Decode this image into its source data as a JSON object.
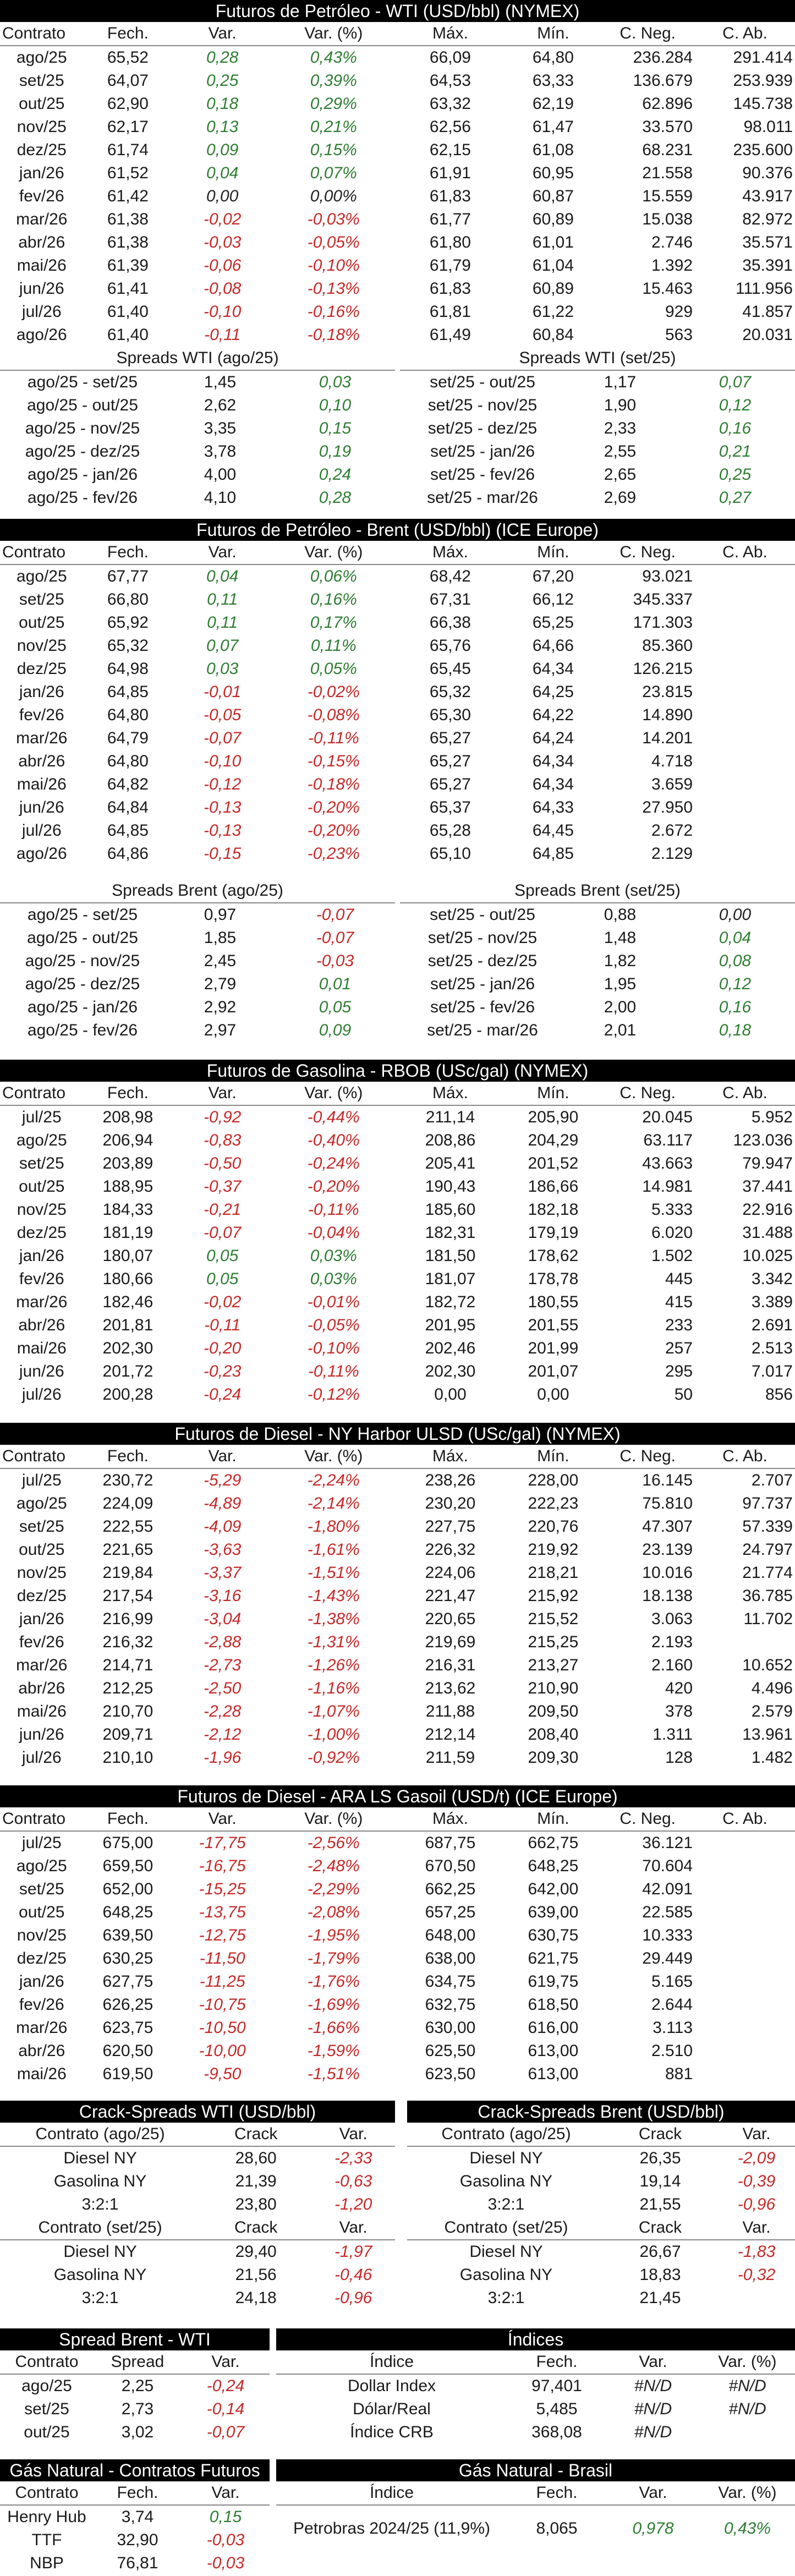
{
  "wti": {
    "title": "Futuros de Petróleo - WTI (USD/bbl) (NYMEX)",
    "columns": [
      "Contrato",
      "Fech.",
      "Var.",
      "Var. (%)",
      "Máx.",
      "Mín.",
      "C. Neg.",
      "C. Ab."
    ],
    "rows": [
      [
        "ago/25",
        "65,52",
        "0,28",
        "0,43%",
        "66,09",
        "64,80",
        "236.284",
        "291.414"
      ],
      [
        "set/25",
        "64,07",
        "0,25",
        "0,39%",
        "64,53",
        "63,33",
        "136.679",
        "253.939"
      ],
      [
        "out/25",
        "62,90",
        "0,18",
        "0,29%",
        "63,32",
        "62,19",
        "62.896",
        "145.738"
      ],
      [
        "nov/25",
        "62,17",
        "0,13",
        "0,21%",
        "62,56",
        "61,47",
        "33.570",
        "98.011"
      ],
      [
        "dez/25",
        "61,74",
        "0,09",
        "0,15%",
        "62,15",
        "61,08",
        "68.231",
        "235.600"
      ],
      [
        "jan/26",
        "61,52",
        "0,04",
        "0,07%",
        "61,91",
        "60,95",
        "21.558",
        "90.376"
      ],
      [
        "fev/26",
        "61,42",
        "0,00",
        "0,00%",
        "61,83",
        "60,87",
        "15.559",
        "43.917"
      ],
      [
        "mar/26",
        "61,38",
        "-0,02",
        "-0,03%",
        "61,77",
        "60,89",
        "15.038",
        "82.972"
      ],
      [
        "abr/26",
        "61,38",
        "-0,03",
        "-0,05%",
        "61,80",
        "61,01",
        "2.746",
        "35.571"
      ],
      [
        "mai/26",
        "61,39",
        "-0,06",
        "-0,10%",
        "61,79",
        "61,04",
        "1.392",
        "35.391"
      ],
      [
        "jun/26",
        "61,41",
        "-0,08",
        "-0,13%",
        "61,83",
        "60,89",
        "15.463",
        "111.956"
      ],
      [
        "jul/26",
        "61,40",
        "-0,10",
        "-0,16%",
        "61,81",
        "61,22",
        "929",
        "41.857"
      ],
      [
        "ago/26",
        "61,40",
        "-0,11",
        "-0,18%",
        "61,49",
        "60,84",
        "563",
        "20.031"
      ]
    ],
    "spreads_left_title": "Spreads WTI (ago/25)",
    "spreads_left": [
      [
        "ago/25 - set/25",
        "1,45",
        "0,03"
      ],
      [
        "ago/25 - out/25",
        "2,62",
        "0,10"
      ],
      [
        "ago/25 - nov/25",
        "3,35",
        "0,15"
      ],
      [
        "ago/25 - dez/25",
        "3,78",
        "0,19"
      ],
      [
        "ago/25 - jan/26",
        "4,00",
        "0,24"
      ],
      [
        "ago/25 - fev/26",
        "4,10",
        "0,28"
      ]
    ],
    "spreads_right_title": "Spreads WTI (set/25)",
    "spreads_right": [
      [
        "set/25 - out/25",
        "1,17",
        "0,07"
      ],
      [
        "set/25 - nov/25",
        "1,90",
        "0,12"
      ],
      [
        "set/25 - dez/25",
        "2,33",
        "0,16"
      ],
      [
        "set/25 - jan/26",
        "2,55",
        "0,21"
      ],
      [
        "set/25 - fev/26",
        "2,65",
        "0,25"
      ],
      [
        "set/25 - mar/26",
        "2,69",
        "0,27"
      ]
    ]
  },
  "brent": {
    "title": "Futuros de Petróleo - Brent (USD/bbl) (ICE Europe)",
    "columns": [
      "Contrato",
      "Fech.",
      "Var.",
      "Var. (%)",
      "Máx.",
      "Mín.",
      "C. Neg.",
      "C. Ab."
    ],
    "rows": [
      [
        "ago/25",
        "67,77",
        "0,04",
        "0,06%",
        "68,42",
        "67,20",
        "93.021",
        ""
      ],
      [
        "set/25",
        "66,80",
        "0,11",
        "0,16%",
        "67,31",
        "66,12",
        "345.337",
        ""
      ],
      [
        "out/25",
        "65,92",
        "0,11",
        "0,17%",
        "66,38",
        "65,25",
        "171.303",
        ""
      ],
      [
        "nov/25",
        "65,32",
        "0,07",
        "0,11%",
        "65,76",
        "64,66",
        "85.360",
        ""
      ],
      [
        "dez/25",
        "64,98",
        "0,03",
        "0,05%",
        "65,45",
        "64,34",
        "126.215",
        ""
      ],
      [
        "jan/26",
        "64,85",
        "-0,01",
        "-0,02%",
        "65,32",
        "64,25",
        "23.815",
        ""
      ],
      [
        "fev/26",
        "64,80",
        "-0,05",
        "-0,08%",
        "65,30",
        "64,22",
        "14.890",
        ""
      ],
      [
        "mar/26",
        "64,79",
        "-0,07",
        "-0,11%",
        "65,27",
        "64,24",
        "14.201",
        ""
      ],
      [
        "abr/26",
        "64,80",
        "-0,10",
        "-0,15%",
        "65,27",
        "64,34",
        "4.718",
        ""
      ],
      [
        "mai/26",
        "64,82",
        "-0,12",
        "-0,18%",
        "65,27",
        "64,34",
        "3.659",
        ""
      ],
      [
        "jun/26",
        "64,84",
        "-0,13",
        "-0,20%",
        "65,37",
        "64,33",
        "27.950",
        ""
      ],
      [
        "jul/26",
        "64,85",
        "-0,13",
        "-0,20%",
        "65,28",
        "64,45",
        "2.672",
        ""
      ],
      [
        "ago/26",
        "64,86",
        "-0,15",
        "-0,23%",
        "65,10",
        "64,85",
        "2.129",
        ""
      ]
    ],
    "spreads_left_title": "Spreads Brent (ago/25)",
    "spreads_left": [
      [
        "ago/25 - set/25",
        "0,97",
        "-0,07"
      ],
      [
        "ago/25 - out/25",
        "1,85",
        "-0,07"
      ],
      [
        "ago/25 - nov/25",
        "2,45",
        "-0,03"
      ],
      [
        "ago/25 - dez/25",
        "2,79",
        "0,01"
      ],
      [
        "ago/25 - jan/26",
        "2,92",
        "0,05"
      ],
      [
        "ago/25 - fev/26",
        "2,97",
        "0,09"
      ]
    ],
    "spreads_right_title": "Spreads Brent (set/25)",
    "spreads_right": [
      [
        "set/25 - out/25",
        "0,88",
        "0,00"
      ],
      [
        "set/25 - nov/25",
        "1,48",
        "0,04"
      ],
      [
        "set/25 - dez/25",
        "1,82",
        "0,08"
      ],
      [
        "set/25 - jan/26",
        "1,95",
        "0,12"
      ],
      [
        "set/25 - fev/26",
        "2,00",
        "0,16"
      ],
      [
        "set/25 - mar/26",
        "2,01",
        "0,18"
      ]
    ]
  },
  "rbob": {
    "title": "Futuros de Gasolina - RBOB (USc/gal) (NYMEX)",
    "columns": [
      "Contrato",
      "Fech.",
      "Var.",
      "Var. (%)",
      "Máx.",
      "Mín.",
      "C. Neg.",
      "C. Ab."
    ],
    "rows": [
      [
        "jul/25",
        "208,98",
        "-0,92",
        "-0,44%",
        "211,14",
        "205,90",
        "20.045",
        "5.952"
      ],
      [
        "ago/25",
        "206,94",
        "-0,83",
        "-0,40%",
        "208,86",
        "204,29",
        "63.117",
        "123.036"
      ],
      [
        "set/25",
        "203,89",
        "-0,50",
        "-0,24%",
        "205,41",
        "201,52",
        "43.663",
        "79.947"
      ],
      [
        "out/25",
        "188,95",
        "-0,37",
        "-0,20%",
        "190,43",
        "186,66",
        "14.981",
        "37.441"
      ],
      [
        "nov/25",
        "184,33",
        "-0,21",
        "-0,11%",
        "185,60",
        "182,18",
        "5.333",
        "22.916"
      ],
      [
        "dez/25",
        "181,19",
        "-0,07",
        "-0,04%",
        "182,31",
        "179,19",
        "6.020",
        "31.488"
      ],
      [
        "jan/26",
        "180,07",
        "0,05",
        "0,03%",
        "181,50",
        "178,62",
        "1.502",
        "10.025"
      ],
      [
        "fev/26",
        "180,66",
        "0,05",
        "0,03%",
        "181,07",
        "178,78",
        "445",
        "3.342"
      ],
      [
        "mar/26",
        "182,46",
        "-0,02",
        "-0,01%",
        "182,72",
        "180,55",
        "415",
        "3.389"
      ],
      [
        "abr/26",
        "201,81",
        "-0,11",
        "-0,05%",
        "201,95",
        "201,55",
        "233",
        "2.691"
      ],
      [
        "mai/26",
        "202,30",
        "-0,20",
        "-0,10%",
        "202,46",
        "201,99",
        "257",
        "2.513"
      ],
      [
        "jun/26",
        "201,72",
        "-0,23",
        "-0,11%",
        "202,30",
        "201,07",
        "295",
        "7.017"
      ],
      [
        "jul/26",
        "200,28",
        "-0,24",
        "-0,12%",
        "0,00",
        "0,00",
        "50",
        "856"
      ]
    ]
  },
  "ulsd": {
    "title": "Futuros de Diesel - NY Harbor ULSD (USc/gal) (NYMEX)",
    "columns": [
      "Contrato",
      "Fech.",
      "Var.",
      "Var. (%)",
      "Máx.",
      "Mín.",
      "C. Neg.",
      "C. Ab."
    ],
    "rows": [
      [
        "jul/25",
        "230,72",
        "-5,29",
        "-2,24%",
        "238,26",
        "228,00",
        "16.145",
        "2.707"
      ],
      [
        "ago/25",
        "224,09",
        "-4,89",
        "-2,14%",
        "230,20",
        "222,23",
        "75.810",
        "97.737"
      ],
      [
        "set/25",
        "222,55",
        "-4,09",
        "-1,80%",
        "227,75",
        "220,76",
        "47.307",
        "57.339"
      ],
      [
        "out/25",
        "221,65",
        "-3,63",
        "-1,61%",
        "226,32",
        "219,92",
        "23.139",
        "24.797"
      ],
      [
        "nov/25",
        "219,84",
        "-3,37",
        "-1,51%",
        "224,06",
        "218,21",
        "10.016",
        "21.774"
      ],
      [
        "dez/25",
        "217,54",
        "-3,16",
        "-1,43%",
        "221,47",
        "215,92",
        "18.138",
        "36.785"
      ],
      [
        "jan/26",
        "216,99",
        "-3,04",
        "-1,38%",
        "220,65",
        "215,52",
        "3.063",
        "11.702"
      ],
      [
        "fev/26",
        "216,32",
        "-2,88",
        "-1,31%",
        "219,69",
        "215,25",
        "2.193",
        ""
      ],
      [
        "mar/26",
        "214,71",
        "-2,73",
        "-1,26%",
        "216,31",
        "213,27",
        "2.160",
        "10.652"
      ],
      [
        "abr/26",
        "212,25",
        "-2,50",
        "-1,16%",
        "213,62",
        "210,90",
        "420",
        "4.496"
      ],
      [
        "mai/26",
        "210,70",
        "-2,28",
        "-1,07%",
        "211,88",
        "209,50",
        "378",
        "2.579"
      ],
      [
        "jun/26",
        "209,71",
        "-2,12",
        "-1,00%",
        "212,14",
        "208,40",
        "1.311",
        "13.961"
      ],
      [
        "jul/26",
        "210,10",
        "-1,96",
        "-0,92%",
        "211,59",
        "209,30",
        "128",
        "1.482"
      ]
    ]
  },
  "gasoil": {
    "title": "Futuros de Diesel - ARA LS Gasoil (USD/t) (ICE Europe)",
    "columns": [
      "Contrato",
      "Fech.",
      "Var.",
      "Var. (%)",
      "Máx.",
      "Mín.",
      "C. Neg.",
      "C. Ab."
    ],
    "rows": [
      [
        "jul/25",
        "675,00",
        "-17,75",
        "-2,56%",
        "687,75",
        "662,75",
        "36.121",
        ""
      ],
      [
        "ago/25",
        "659,50",
        "-16,75",
        "-2,48%",
        "670,50",
        "648,25",
        "70.604",
        ""
      ],
      [
        "set/25",
        "652,00",
        "-15,25",
        "-2,29%",
        "662,25",
        "642,00",
        "42.091",
        ""
      ],
      [
        "out/25",
        "648,25",
        "-13,75",
        "-2,08%",
        "657,25",
        "639,00",
        "22.585",
        ""
      ],
      [
        "nov/25",
        "639,50",
        "-12,75",
        "-1,95%",
        "648,00",
        "630,75",
        "10.333",
        ""
      ],
      [
        "dez/25",
        "630,25",
        "-11,50",
        "-1,79%",
        "638,00",
        "621,75",
        "29.449",
        ""
      ],
      [
        "jan/26",
        "627,75",
        "-11,25",
        "-1,76%",
        "634,75",
        "619,75",
        "5.165",
        ""
      ],
      [
        "fev/26",
        "626,25",
        "-10,75",
        "-1,69%",
        "632,75",
        "618,50",
        "2.644",
        ""
      ],
      [
        "mar/26",
        "623,75",
        "-10,50",
        "-1,66%",
        "630,00",
        "616,00",
        "3.113",
        ""
      ],
      [
        "abr/26",
        "620,50",
        "-10,00",
        "-1,59%",
        "625,50",
        "613,00",
        "2.510",
        ""
      ],
      [
        "mai/26",
        "619,50",
        "-9,50",
        "-1,51%",
        "623,50",
        "613,00",
        "881",
        ""
      ]
    ]
  },
  "crack_wti": {
    "title": "Crack-Spreads WTI (USD/bbl)",
    "hdr1": [
      "Contrato (ago/25)",
      "Crack",
      "Var."
    ],
    "rows1": [
      [
        "Diesel NY",
        "28,60",
        "-2,33"
      ],
      [
        "Gasolina NY",
        "21,39",
        "-0,63"
      ],
      [
        "3:2:1",
        "23,80",
        "-1,20"
      ]
    ],
    "hdr2": [
      "Contrato (set/25)",
      "Crack",
      "Var."
    ],
    "rows2": [
      [
        "Diesel NY",
        "29,40",
        "-1,97"
      ],
      [
        "Gasolina NY",
        "21,56",
        "-0,46"
      ],
      [
        "3:2:1",
        "24,18",
        "-0,96"
      ]
    ]
  },
  "crack_brent": {
    "title": "Crack-Spreads Brent (USD/bbl)",
    "hdr1": [
      "Contrato (ago/25)",
      "Crack",
      "Var."
    ],
    "rows1": [
      [
        "Diesel NY",
        "26,35",
        "-2,09"
      ],
      [
        "Gasolina NY",
        "19,14",
        "-0,39"
      ],
      [
        "3:2:1",
        "21,55",
        "-0,96"
      ]
    ],
    "hdr2": [
      "Contrato (set/25)",
      "Crack",
      "Var."
    ],
    "rows2": [
      [
        "Diesel NY",
        "26,67",
        "-1,83"
      ],
      [
        "Gasolina NY",
        "18,83",
        "-0,32"
      ],
      [
        "3:2:1",
        "21,45",
        ""
      ]
    ]
  },
  "spread_bw": {
    "title": "Spread Brent - WTI",
    "columns": [
      "Contrato",
      "Spread",
      "Var."
    ],
    "rows": [
      [
        "ago/25",
        "2,25",
        "-0,24"
      ],
      [
        "set/25",
        "2,73",
        "-0,14"
      ],
      [
        "out/25",
        "3,02",
        "-0,07"
      ]
    ]
  },
  "indices": {
    "title": "Índices",
    "columns": [
      "Índice",
      "Fech.",
      "Var.",
      "Var. (%)"
    ],
    "rows": [
      [
        "Dollar Index",
        "97,401",
        "#N/D",
        "#N/D"
      ],
      [
        "Dólar/Real",
        "5,485",
        "#N/D",
        "#N/D"
      ],
      [
        "Índice CRB",
        "368,08",
        "#N/D",
        ""
      ]
    ]
  },
  "gas_futures": {
    "title": "Gás Natural - Contratos Futuros",
    "columns": [
      "Contrato",
      "Fech.",
      "Var."
    ],
    "rows": [
      [
        "Henry Hub",
        "3,74",
        "0,15"
      ],
      [
        "TTF",
        "32,90",
        "-0,03"
      ],
      [
        "NBP",
        "76,81",
        "-0,03"
      ]
    ]
  },
  "gas_brasil": {
    "title": "Gás Natural - Brasil",
    "columns": [
      "Índice",
      "Fech.",
      "Var.",
      "Var. (%)"
    ],
    "rows": [
      [
        "Petrobras 2024/25 (11,9%)",
        "8,065",
        "0,978",
        "0,43%"
      ]
    ]
  }
}
